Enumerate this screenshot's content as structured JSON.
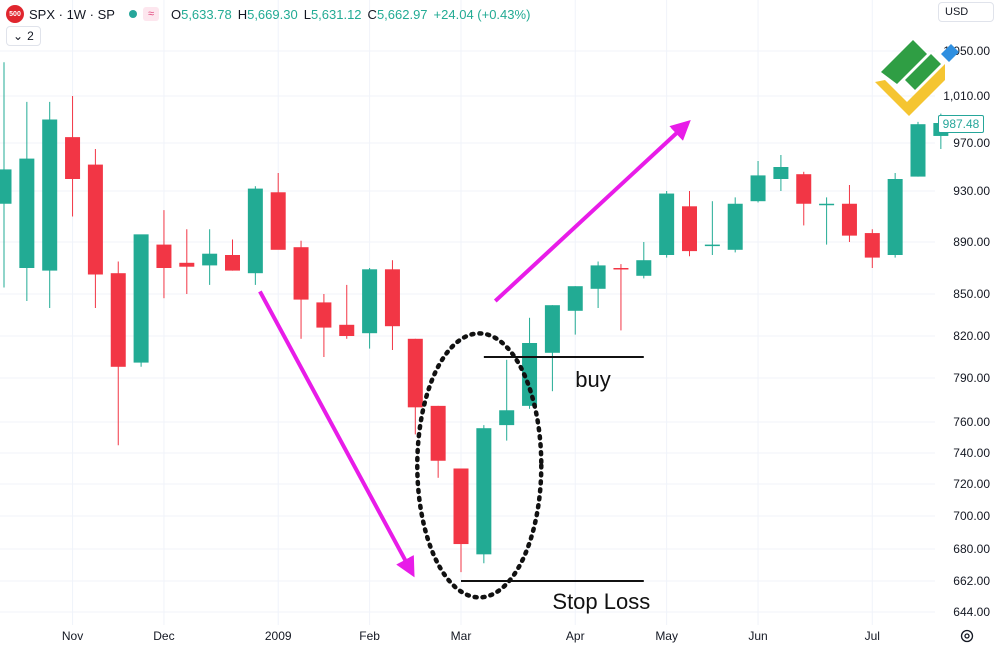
{
  "header": {
    "badge": "500",
    "symbol": "SPX · 1W · SP",
    "ohlc": [
      {
        "k": "O",
        "v": "5,633.78"
      },
      {
        "k": "H",
        "v": "5,669.30"
      },
      {
        "k": "L",
        "v": "5,631.12"
      },
      {
        "k": "C",
        "v": "5,662.97"
      }
    ],
    "change": "+24.04 (+0.43%)",
    "collapse_label": "2",
    "currency": "USD",
    "live_icon": "green-dot-icon",
    "indicator_icon": "wave-icon"
  },
  "last_price": "987.48",
  "colors": {
    "up": "#22ab94",
    "down": "#f23645",
    "arrow": "#e81ce8",
    "grid": "#f0f3fa"
  },
  "chart_data": {
    "type": "candlestick",
    "y_ticks": [
      644,
      662,
      680,
      700,
      720,
      740,
      760,
      790,
      820,
      850,
      890,
      930,
      970,
      1010,
      1050
    ],
    "y_tick_labels": [
      "644.00",
      "662.00",
      "680.00",
      "700.00",
      "720.00",
      "740.00",
      "760.00",
      "790.00",
      "820.00",
      "850.00",
      "890.00",
      "930.00",
      "970.00",
      "1,010.00",
      "1,050.00"
    ],
    "x_labels": [
      {
        "label": "Nov",
        "i": 3
      },
      {
        "label": "Dec",
        "i": 7
      },
      {
        "label": "2009",
        "i": 12
      },
      {
        "label": "Feb",
        "i": 16
      },
      {
        "label": "Mar",
        "i": 20
      },
      {
        "label": "Apr",
        "i": 25
      },
      {
        "label": "May",
        "i": 29
      },
      {
        "label": "Jun",
        "i": 33
      },
      {
        "label": "Jul",
        "i": 38
      }
    ],
    "candles": [
      {
        "o": 920,
        "h": 1040,
        "l": 855,
        "c": 948
      },
      {
        "o": 870,
        "h": 1005,
        "l": 845,
        "c": 957
      },
      {
        "o": 868,
        "h": 1005,
        "l": 840,
        "c": 990
      },
      {
        "o": 975,
        "h": 1010,
        "l": 910,
        "c": 940
      },
      {
        "o": 952,
        "h": 965,
        "l": 840,
        "c": 865
      },
      {
        "o": 866,
        "h": 875,
        "l": 745,
        "c": 798
      },
      {
        "o": 801,
        "h": 895,
        "l": 798,
        "c": 896
      },
      {
        "o": 888,
        "h": 915,
        "l": 847,
        "c": 870
      },
      {
        "o": 874,
        "h": 900,
        "l": 850,
        "c": 871
      },
      {
        "o": 872,
        "h": 900,
        "l": 857,
        "c": 881
      },
      {
        "o": 880,
        "h": 892,
        "l": 868,
        "c": 868
      },
      {
        "o": 866,
        "h": 934,
        "l": 857,
        "c": 932
      },
      {
        "o": 929,
        "h": 945,
        "l": 885,
        "c": 884
      },
      {
        "o": 886,
        "h": 891,
        "l": 818,
        "c": 846
      },
      {
        "o": 844,
        "h": 850,
        "l": 805,
        "c": 826
      },
      {
        "o": 828,
        "h": 857,
        "l": 818,
        "c": 820
      },
      {
        "o": 822,
        "h": 870,
        "l": 811,
        "c": 869
      },
      {
        "o": 869,
        "h": 876,
        "l": 810,
        "c": 827
      },
      {
        "o": 818,
        "h": 818,
        "l": 752,
        "c": 770
      },
      {
        "o": 771,
        "h": 771,
        "l": 724,
        "c": 735
      },
      {
        "o": 730,
        "h": 730,
        "l": 667,
        "c": 683
      },
      {
        "o": 677,
        "h": 758,
        "l": 672,
        "c": 756
      },
      {
        "o": 758,
        "h": 803,
        "l": 748,
        "c": 768
      },
      {
        "o": 771,
        "h": 833,
        "l": 769,
        "c": 815
      },
      {
        "o": 808,
        "h": 842,
        "l": 781,
        "c": 842
      },
      {
        "o": 838,
        "h": 856,
        "l": 821,
        "c": 856
      },
      {
        "o": 854,
        "h": 875,
        "l": 840,
        "c": 872
      },
      {
        "o": 870,
        "h": 873,
        "l": 824,
        "c": 869
      },
      {
        "o": 864,
        "h": 890,
        "l": 862,
        "c": 876
      },
      {
        "o": 880,
        "h": 930,
        "l": 878,
        "c": 928
      },
      {
        "o": 918,
        "h": 930,
        "l": 879,
        "c": 883
      },
      {
        "o": 888,
        "h": 922,
        "l": 880,
        "c": 888
      },
      {
        "o": 884,
        "h": 925,
        "l": 882,
        "c": 920
      },
      {
        "o": 922,
        "h": 955,
        "l": 921,
        "c": 943
      },
      {
        "o": 940,
        "h": 960,
        "l": 930,
        "c": 950
      },
      {
        "o": 944,
        "h": 946,
        "l": 903,
        "c": 920
      },
      {
        "o": 920,
        "h": 925,
        "l": 888,
        "c": 920
      },
      {
        "o": 920,
        "h": 935,
        "l": 890,
        "c": 895
      },
      {
        "o": 897,
        "h": 900,
        "l": 870,
        "c": 878
      },
      {
        "o": 880,
        "h": 945,
        "l": 878,
        "c": 940
      },
      {
        "o": 942,
        "h": 988,
        "l": 942,
        "c": 986
      },
      {
        "o": 976,
        "h": 995,
        "l": 965,
        "c": 987
      }
    ],
    "annotations": {
      "buy": {
        "label": "buy",
        "level": 805,
        "from_i": 21,
        "to_i": 28
      },
      "stop_loss": {
        "label": "Stop Loss",
        "level": 662,
        "from_i": 20,
        "to_i": 28
      }
    }
  }
}
